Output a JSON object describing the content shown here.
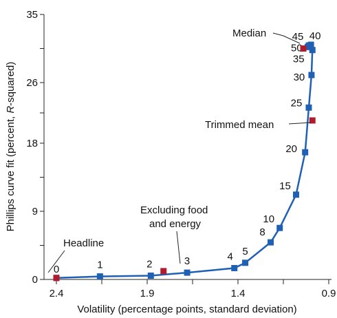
{
  "chart_data": {
    "type": "scatter",
    "title": "",
    "xlabel": "Volatility (percentage points, standard deviation)",
    "ylabel": "Phillips curve fit (percent, R-squared)",
    "ylabel_parts": [
      "Phillips curve fit (percent, ",
      "R",
      "-squared)"
    ],
    "xlim": [
      2.4,
      0.9
    ],
    "x_reversed": true,
    "ylim": [
      0,
      35
    ],
    "x_ticks": [
      2.4,
      1.9,
      1.4,
      0.9
    ],
    "x_tick_labels": [
      "2.4",
      "1.9",
      "1.4",
      "0.9"
    ],
    "y_ticks": [
      0,
      9,
      18,
      26,
      35
    ],
    "y_tick_labels": [
      "0",
      "9",
      "18",
      "26",
      "35"
    ],
    "grid": false,
    "series": [
      {
        "color": "#1f5fb4",
        "points": [
          {
            "x": 2.4,
            "y": 0.2,
            "label": "0"
          },
          {
            "x": 2.16,
            "y": 0.4,
            "label": "1"
          },
          {
            "x": 1.88,
            "y": 0.5,
            "label": "2"
          },
          {
            "x": 1.68,
            "y": 0.9,
            "label": "3"
          },
          {
            "x": 1.42,
            "y": 1.5,
            "label": "4"
          },
          {
            "x": 1.36,
            "y": 2.2,
            "label": "5"
          },
          {
            "x": 1.22,
            "y": 4.9,
            "label": "8"
          },
          {
            "x": 1.17,
            "y": 6.8,
            "label": "10"
          },
          {
            "x": 1.08,
            "y": 11.2,
            "label": "15"
          },
          {
            "x": 1.03,
            "y": 16.8,
            "label": "20"
          },
          {
            "x": 1.01,
            "y": 22.7,
            "label": "25"
          },
          {
            "x": 0.995,
            "y": 27.0,
            "label": "30"
          },
          {
            "x": 0.99,
            "y": 30.3,
            "label": "35"
          },
          {
            "x": 0.998,
            "y": 31.0,
            "label": "40"
          },
          {
            "x": 1.01,
            "y": 30.9,
            "label": "45"
          },
          {
            "x": 1.016,
            "y": 30.7,
            "label": "50"
          }
        ]
      }
    ],
    "highlights": [
      {
        "name": "Headline",
        "x": 2.4,
        "y": 0.2,
        "color": "#b01c2e"
      },
      {
        "name": "Excluding food and energy",
        "x": 1.81,
        "y": 1.1,
        "color": "#b01c2e"
      },
      {
        "name": "Median",
        "x": 1.04,
        "y": 30.5,
        "color": "#b01c2e"
      },
      {
        "name": "Trimmed mean",
        "x": 0.99,
        "y": 21.0,
        "color": "#b01c2e"
      }
    ],
    "annotations": {
      "headline": "Headline",
      "excluding_line1": "Excluding food",
      "excluding_line2": "and energy",
      "median": "Median",
      "trimmed_mean": "Trimmed mean"
    }
  }
}
